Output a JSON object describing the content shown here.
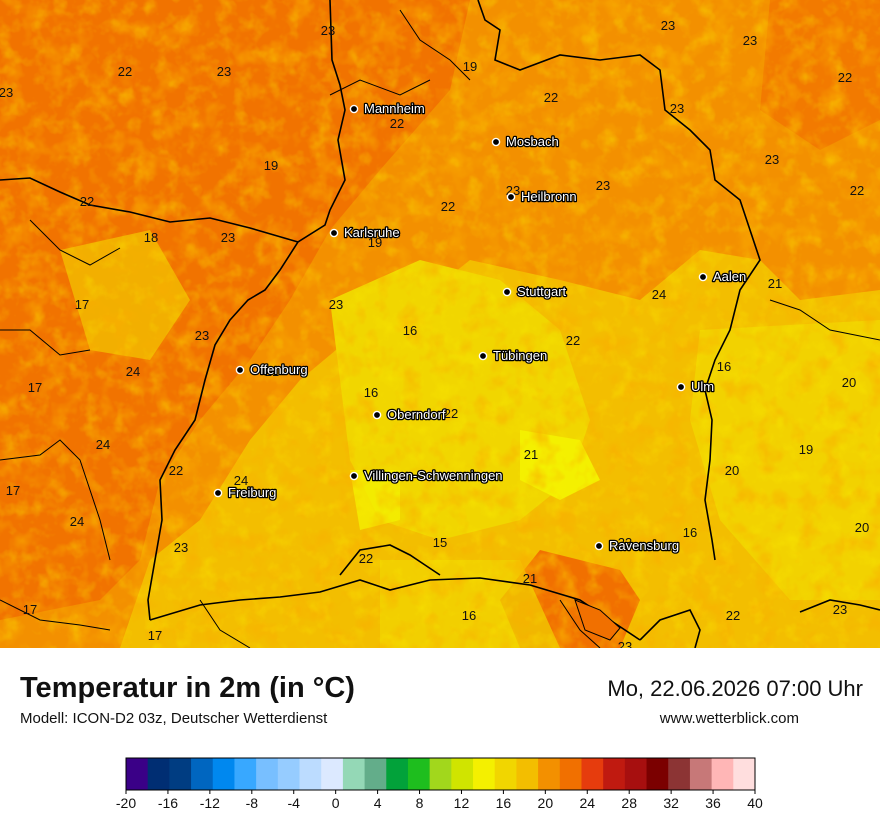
{
  "header": {
    "title": "Temperatur in 2m (in °C)",
    "model": "Modell: ICON-D2 03z, Deutscher Wetterdienst",
    "datetime": "Mo, 22.06.2026 07:00 Uhr",
    "website": "www.wetterblick.com"
  },
  "cities": [
    {
      "name": "Mannheim"
    },
    {
      "name": "Mosbach"
    },
    {
      "name": "Heilbronn"
    },
    {
      "name": "Karlsruhe"
    },
    {
      "name": "Stuttgart"
    },
    {
      "name": "Aalen"
    },
    {
      "name": "Tübingen"
    },
    {
      "name": "Offenburg"
    },
    {
      "name": "Ulm"
    },
    {
      "name": "Oberndorf"
    },
    {
      "name": "Villingen-Schwenningen"
    },
    {
      "name": "Freiburg"
    },
    {
      "name": "Ravensburg"
    }
  ],
  "temperature_values": [
    "23",
    "23",
    "22",
    "23",
    "23",
    "19",
    "22",
    "23",
    "22",
    "22",
    "23",
    "19",
    "23",
    "22",
    "23",
    "23",
    "22",
    "22",
    "18",
    "23",
    "19",
    "23",
    "21",
    "17",
    "24",
    "23",
    "16",
    "22",
    "17",
    "24",
    "21",
    "16",
    "20",
    "16",
    "22",
    "24",
    "21",
    "19",
    "22",
    "24",
    "20",
    "17",
    "24",
    "16",
    "20",
    "23",
    "15",
    "22",
    "23",
    "21",
    "17",
    "16",
    "22",
    "23",
    "17",
    "23"
  ],
  "legend": {
    "colors": [
      "#3a0087",
      "#002e73",
      "#003d82",
      "#0066c0",
      "#0088ef",
      "#38a8ff",
      "#78bfff",
      "#96ccff",
      "#bcdcff",
      "#dce9ff",
      "#94d8b6",
      "#63ad8a",
      "#02a23a",
      "#1ebe1e",
      "#a2d71c",
      "#d0e400",
      "#f4f000",
      "#f1d600",
      "#f3be00",
      "#f39000",
      "#f17000",
      "#e63c0d",
      "#c01a10",
      "#a70f0f",
      "#7b0000",
      "#8c3434",
      "#c77878",
      "#ffb6b6",
      "#ffdede"
    ],
    "ticks": [
      "-20",
      "-16",
      "-12",
      "-8",
      "-4",
      "0",
      "4",
      "8",
      "12",
      "16",
      "20",
      "24",
      "28",
      "32",
      "36",
      "40"
    ]
  }
}
